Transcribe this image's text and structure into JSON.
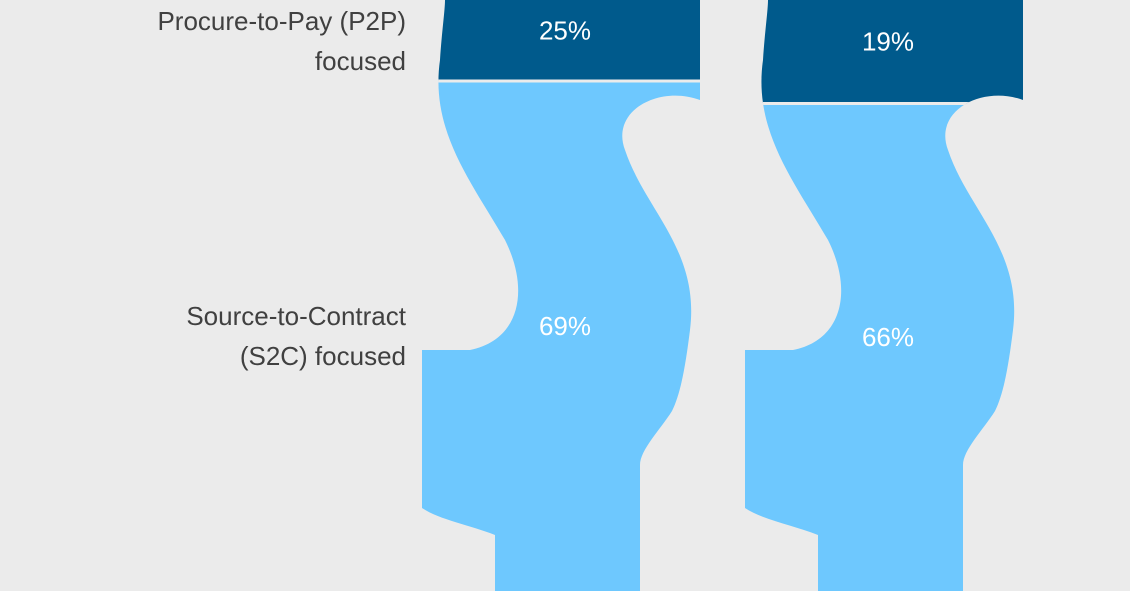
{
  "chart_data": {
    "type": "pictograph-stacked",
    "categories": [
      null,
      null
    ],
    "series": [
      {
        "name": "Source-to-Contract (S2C) focused",
        "color": "#6ec8fe",
        "values": [
          69,
          66
        ],
        "value_labels": [
          "69%",
          "66%"
        ]
      },
      {
        "name": "Procure-to-Pay (P2P) focused",
        "color": "#005a8c",
        "values": [
          25,
          19
        ],
        "value_labels": [
          "25%",
          "19%"
        ]
      }
    ]
  }
}
